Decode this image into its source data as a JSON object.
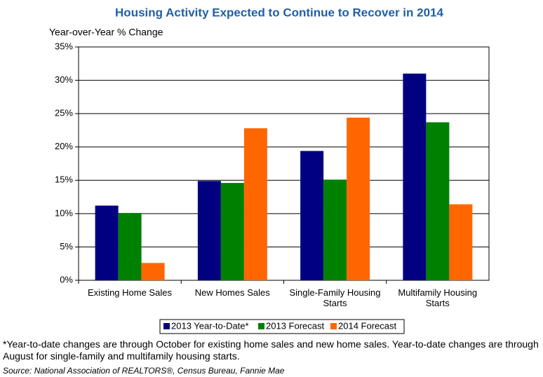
{
  "chart_data": {
    "type": "bar",
    "title": "Housing Activity Expected to Continue to Recover in 2014",
    "y_axis_label": "Year-over-Year % Change",
    "categories": [
      "Existing Home Sales",
      "New Homes Sales",
      "Single-Family Housing Starts",
      "Multifamily Housing Starts"
    ],
    "series": [
      {
        "name": "2013 Year-to-Date*",
        "color": "#000080",
        "values": [
          11.2,
          14.9,
          19.4,
          31.0
        ]
      },
      {
        "name": "2013 Forecast",
        "color": "#008000",
        "values": [
          10.1,
          14.6,
          15.1,
          23.7
        ]
      },
      {
        "name": "2014 Forecast",
        "color": "#ff6600",
        "values": [
          2.6,
          22.8,
          24.4,
          11.4
        ]
      }
    ],
    "ylim": [
      0,
      35
    ],
    "yticks": [
      {
        "value": 0,
        "label": "0%"
      },
      {
        "value": 5,
        "label": "5%"
      },
      {
        "value": 10,
        "label": "10%"
      },
      {
        "value": 15,
        "label": "15%"
      },
      {
        "value": 20,
        "label": "20%"
      },
      {
        "value": 25,
        "label": "25%"
      },
      {
        "value": 30,
        "label": "30%"
      },
      {
        "value": 35,
        "label": "35%"
      }
    ],
    "grid": true,
    "legend": "bottom",
    "footnote": "*Year-to-date changes are through October for existing home sales and new home sales. Year-to-date changes are through August for single-family and multifamily housing starts.",
    "source": "Source: National Association of REALTORS®, Census Bureau, Fannie Mae"
  }
}
